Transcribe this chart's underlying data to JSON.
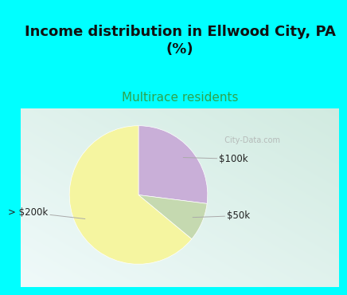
{
  "title": "Income distribution in Ellwood City, PA\n(%)",
  "subtitle": "Multirace residents",
  "title_color": "#111111",
  "subtitle_color": "#2da44e",
  "title_bg_color": "#00FFFF",
  "slices": [
    {
      "label": "$100k",
      "value": 27,
      "color": "#c9afd8"
    },
    {
      "label": "$50k",
      "value": 9,
      "color": "#c5d9b0"
    },
    {
      "label": "> $200k",
      "value": 64,
      "color": "#f5f5a0"
    }
  ],
  "label_fontsize": 8.5,
  "title_fontsize": 13,
  "subtitle_fontsize": 11,
  "startangle": 90,
  "label_positions": {
    "$100k": [
      1.38,
      0.52
    ],
    "$50k": [
      1.45,
      -0.3
    ],
    "> $200k": [
      -1.6,
      -0.25
    ]
  },
  "edge_points": {
    "$100k": 0.82,
    "$50k": 0.82,
    "> $200k": 0.82
  }
}
